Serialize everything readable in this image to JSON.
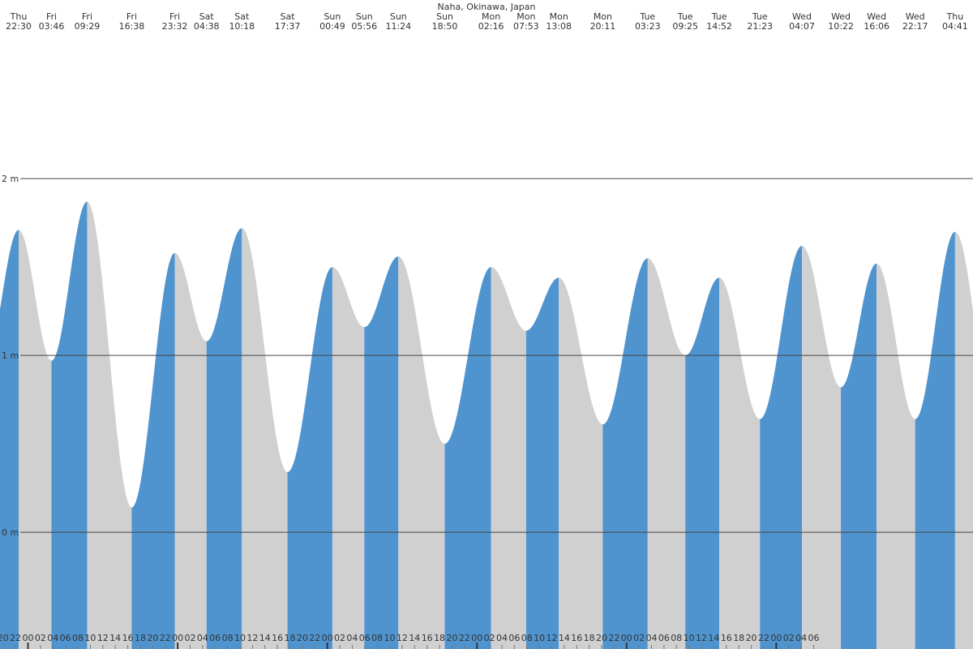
{
  "chart_data": {
    "type": "tide",
    "title": "Naha, Okinawa, Japan",
    "extremes": [
      {
        "day": "Thu",
        "time": "22:30",
        "height": 1.71
      },
      {
        "day": "Fri",
        "time": "03:46",
        "height": 0.97
      },
      {
        "day": "Fri",
        "time": "09:29",
        "height": 1.87
      },
      {
        "day": "Fri",
        "time": "16:38",
        "height": 0.14
      },
      {
        "day": "Fri",
        "time": "23:32",
        "height": 1.58
      },
      {
        "day": "Sat",
        "time": "04:38",
        "height": 1.08
      },
      {
        "day": "Sat",
        "time": "10:18",
        "height": 1.72
      },
      {
        "day": "Sat",
        "time": "17:37",
        "height": 0.34
      },
      {
        "day": "Sun",
        "time": "00:49",
        "height": 1.5
      },
      {
        "day": "Sun",
        "time": "05:56",
        "height": 1.16
      },
      {
        "day": "Sun",
        "time": "11:24",
        "height": 1.56
      },
      {
        "day": "Sun",
        "time": "18:50",
        "height": 0.5
      },
      {
        "day": "Mon",
        "time": "02:16",
        "height": 1.5
      },
      {
        "day": "Mon",
        "time": "07:53",
        "height": 1.14
      },
      {
        "day": "Mon",
        "time": "13:08",
        "height": 1.44
      },
      {
        "day": "Mon",
        "time": "20:11",
        "height": 0.61
      },
      {
        "day": "Tue",
        "time": "03:23",
        "height": 1.55
      },
      {
        "day": "Tue",
        "time": "09:25",
        "height": 1.0
      },
      {
        "day": "Tue",
        "time": "14:52",
        "height": 1.44
      },
      {
        "day": "Tue",
        "time": "21:23",
        "height": 0.64
      },
      {
        "day": "Wed",
        "time": "04:07",
        "height": 1.62
      },
      {
        "day": "Wed",
        "time": "10:22",
        "height": 0.82
      },
      {
        "day": "Wed",
        "time": "16:06",
        "height": 1.52
      },
      {
        "day": "Wed",
        "time": "22:17",
        "height": 0.64
      },
      {
        "day": "Thu",
        "time": "04:41",
        "height": 1.7
      }
    ],
    "rising_color": "#4f94cf",
    "falling_color": "#d0d0d0",
    "ylim": [
      -0.66,
      3.01
    ],
    "yticks": [
      {
        "value": 2,
        "label": "2 m"
      },
      {
        "value": 1,
        "label": "1 m"
      },
      {
        "value": 0,
        "label": "0 m"
      }
    ],
    "hour_ticks": [
      "20",
      "22",
      "00",
      "02",
      "04",
      "06",
      "08",
      "10",
      "12",
      "14",
      "16",
      "18",
      "20",
      "22",
      "00",
      "02",
      "04",
      "06",
      "08",
      "10",
      "12",
      "14",
      "16",
      "18",
      "20",
      "22",
      "00",
      "02",
      "04",
      "06",
      "08",
      "10",
      "12",
      "14",
      "16",
      "18",
      "20",
      "22",
      "00",
      "02",
      "04",
      "06",
      "08",
      "10",
      "12",
      "14",
      "16",
      "18",
      "20",
      "22",
      "00",
      "02",
      "04",
      "06",
      "08",
      "10",
      "12",
      "14",
      "16",
      "18",
      "20",
      "22",
      "00",
      "02",
      "04",
      "06",
      "08",
      "10",
      "12",
      "14",
      "16",
      "18",
      "20",
      "22",
      "00",
      "02",
      "04",
      "06"
    ]
  }
}
